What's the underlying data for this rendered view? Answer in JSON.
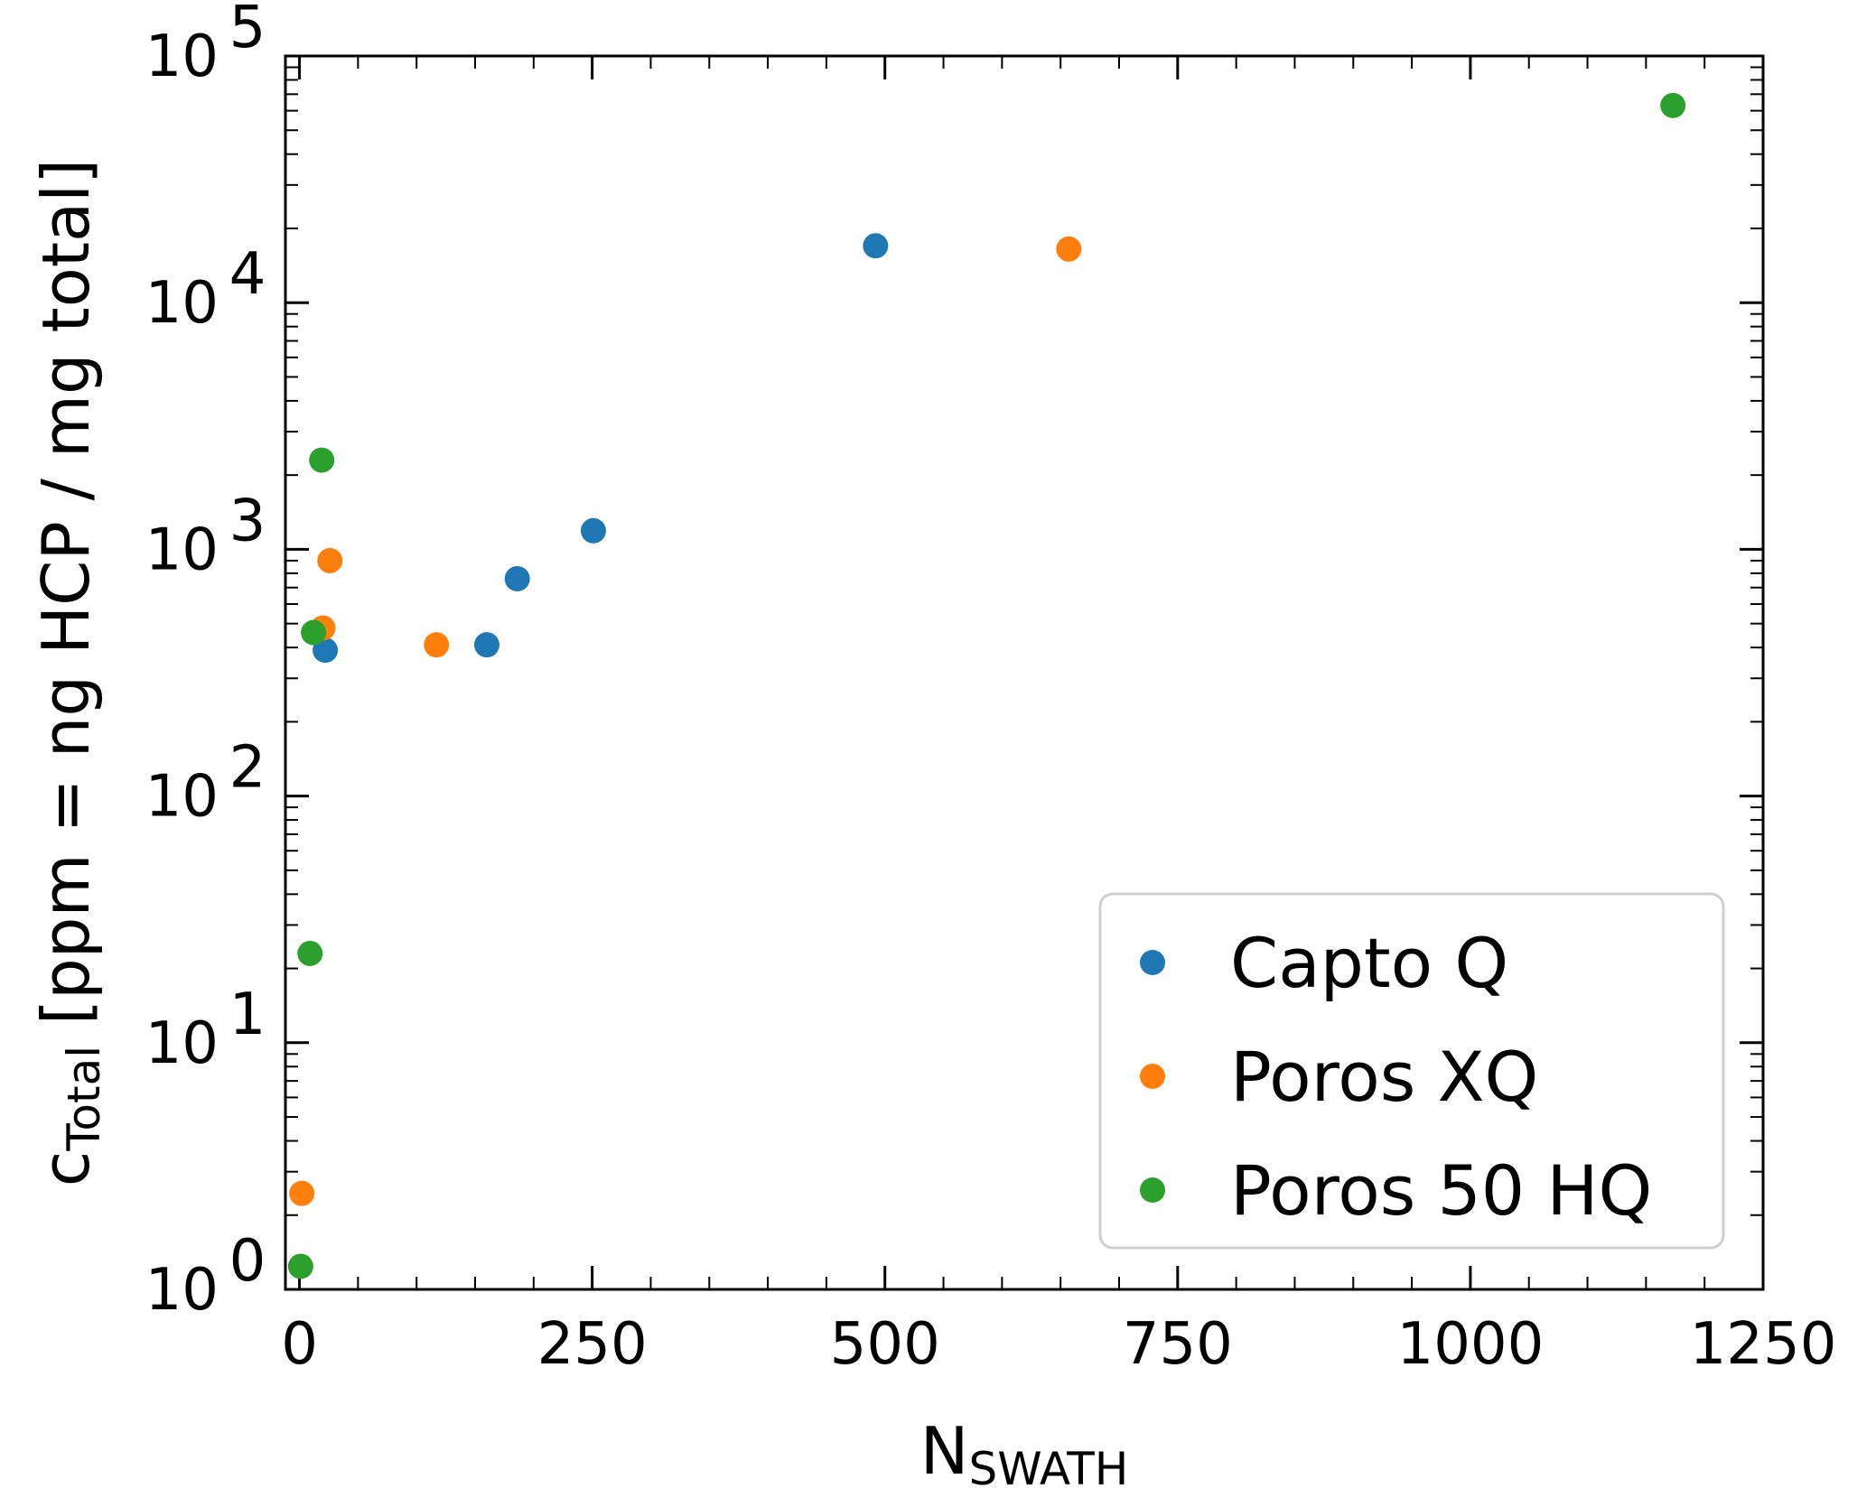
{
  "chart_data": {
    "type": "scatter",
    "xlabel": {
      "main": "N",
      "sub": "SWATH"
    },
    "ylabel": {
      "main": "c",
      "sub": "Total",
      "rest": " [ppm = ng HCP / mg total]"
    },
    "xlim": [
      -12,
      1250
    ],
    "xticks": [
      0,
      250,
      500,
      750,
      1000,
      1250
    ],
    "xtick_labels": [
      "0",
      "250",
      "500",
      "750",
      "1000",
      "1250"
    ],
    "x_minor_step": 50,
    "yscale": "log",
    "ylim": [
      1,
      100000
    ],
    "yticks": [
      1,
      10,
      100,
      1000,
      10000,
      100000
    ],
    "ytick_labels": [
      {
        "base": "10",
        "exp": "0"
      },
      {
        "base": "10",
        "exp": "1"
      },
      {
        "base": "10",
        "exp": "2"
      },
      {
        "base": "10",
        "exp": "3"
      },
      {
        "base": "10",
        "exp": "4"
      },
      {
        "base": "10",
        "exp": "5"
      }
    ],
    "grid": false,
    "legend_position": "lower-right",
    "series": [
      {
        "name": "Capto Q",
        "color": "#1f77b4",
        "points": [
          [
            22,
            390
          ],
          [
            160,
            410
          ],
          [
            186,
            760
          ],
          [
            251,
            1190
          ],
          [
            492,
            17000
          ]
        ]
      },
      {
        "name": "Poros XQ",
        "color": "#ff7f0e",
        "points": [
          [
            2,
            2.45
          ],
          [
            20,
            480
          ],
          [
            26,
            900
          ],
          [
            117,
            410
          ],
          [
            657,
            16500
          ]
        ]
      },
      {
        "name": "Poros 50 HQ",
        "color": "#2ca02c",
        "points": [
          [
            1,
            1.24
          ],
          [
            9,
            23
          ],
          [
            12,
            460
          ],
          [
            19,
            2300
          ],
          [
            1173,
            63000
          ]
        ]
      }
    ]
  }
}
